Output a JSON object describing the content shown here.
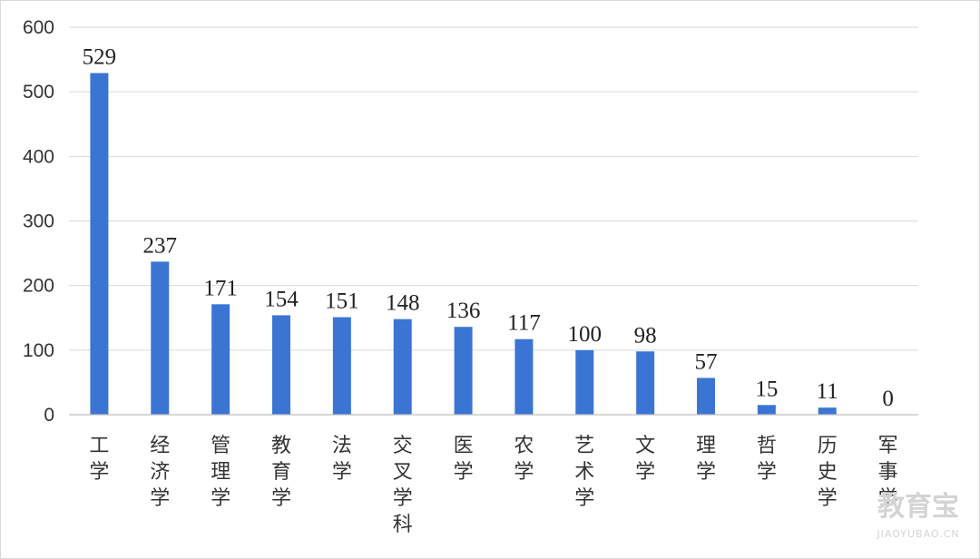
{
  "chart_data": {
    "type": "bar",
    "title": "",
    "xlabel": "",
    "ylabel": "",
    "categories": [
      "工学",
      "经济学",
      "管理学",
      "教育学",
      "法学",
      "交叉学科",
      "医学",
      "农学",
      "艺术学",
      "文学",
      "理学",
      "哲学",
      "历史学",
      "军事学"
    ],
    "values": [
      529,
      237,
      171,
      154,
      151,
      148,
      136,
      117,
      100,
      98,
      57,
      15,
      11,
      0
    ],
    "ylim": [
      0,
      600
    ],
    "yticks": [
      0,
      100,
      200,
      300,
      400,
      500,
      600
    ],
    "grid": true,
    "legend": "none",
    "bar_color": "#3a75d4",
    "data_labels": true
  },
  "watermark": {
    "text_cn": "教育宝",
    "text_en": "JIAOYUBAO.CN"
  }
}
